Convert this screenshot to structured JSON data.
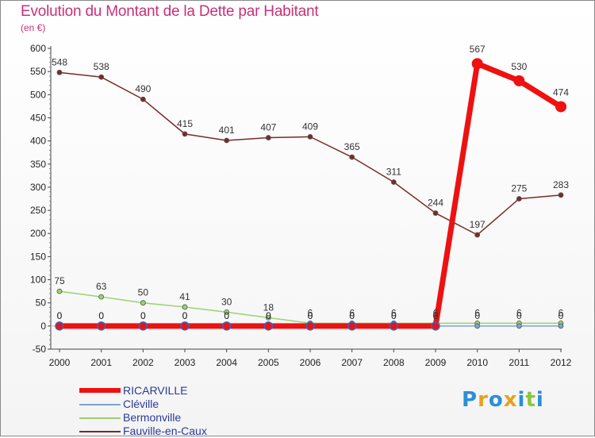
{
  "chart_data": {
    "type": "line",
    "title": "Evolution du Montant de la Dette par Habitant",
    "unit": "(en €)",
    "categories": [
      "2000",
      "2001",
      "2002",
      "2003",
      "2004",
      "2005",
      "2006",
      "2007",
      "2008",
      "2009",
      "2010",
      "2011",
      "2012"
    ],
    "ylim": [
      -50,
      600
    ],
    "yticks": [
      -50,
      0,
      50,
      100,
      150,
      200,
      250,
      300,
      350,
      400,
      450,
      500,
      550,
      600
    ],
    "grid": false,
    "series": [
      {
        "name": "Fauville-en-Caux",
        "color": "#7a2a2a",
        "values": [
          548,
          538,
          490,
          415,
          401,
          407,
          409,
          365,
          311,
          244,
          197,
          275,
          283
        ]
      },
      {
        "name": "Bermonville",
        "color": "#99d36e",
        "values": [
          75,
          63,
          50,
          41,
          30,
          18,
          6,
          6,
          6,
          6,
          6,
          6,
          6
        ]
      },
      {
        "name": "Cléville",
        "color": "#7aa6d0",
        "values": [
          0,
          0,
          0,
          0,
          0,
          0,
          0,
          0,
          0,
          0,
          0,
          0,
          0
        ]
      },
      {
        "name": "RICARVILLE",
        "color": "#ee1111",
        "values": [
          0,
          0,
          0,
          0,
          0,
          0,
          0,
          0,
          0,
          0,
          567,
          530,
          474
        ]
      }
    ]
  },
  "legend": [
    "RICARVILLE",
    "Cléville",
    "Bermonville",
    "Fauville-en-Caux"
  ],
  "logo": {
    "text": "Proxiti",
    "letters": [
      "P",
      "r",
      "o",
      "x",
      "i",
      "t",
      "i"
    ],
    "colors": [
      "#2a8fd6",
      "#e8a020",
      "#2a8fd6",
      "#e8a020",
      "#2a8fd6",
      "#8cc63f",
      "#2a8fd6"
    ]
  }
}
